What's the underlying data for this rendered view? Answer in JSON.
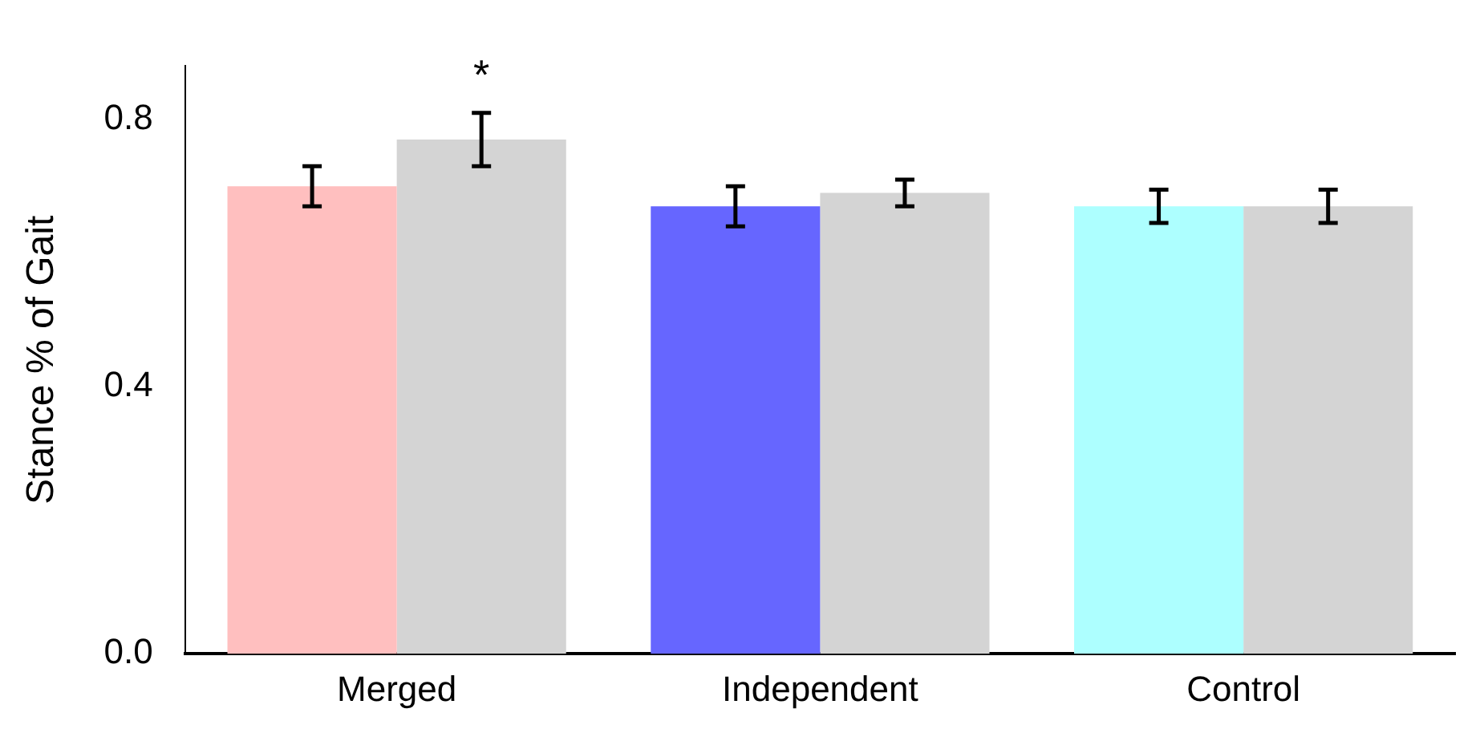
{
  "chart_data": {
    "type": "bar",
    "ylabel": "Stance % of Gait",
    "categories": [
      "Merged",
      "Independent",
      "Control"
    ],
    "series": [
      {
        "colors": [
          "#ffbfbf",
          "#6666ff",
          "#adffff"
        ],
        "values": [
          0.7,
          0.67,
          0.67
        ],
        "errors": [
          0.03,
          0.03,
          0.025
        ]
      },
      {
        "color": "#d4d4d4",
        "values": [
          0.77,
          0.69,
          0.67
        ],
        "errors": [
          0.04,
          0.02,
          0.025
        ]
      }
    ],
    "ylim": [
      0,
      0.88
    ],
    "yticks": [
      {
        "value": 0,
        "label": "0.0"
      },
      {
        "value": 0.4,
        "label": "0.4"
      },
      {
        "value": 0.8,
        "label": "0.8"
      }
    ],
    "grid": false,
    "legend": false,
    "annotations": [
      "*"
    ]
  }
}
